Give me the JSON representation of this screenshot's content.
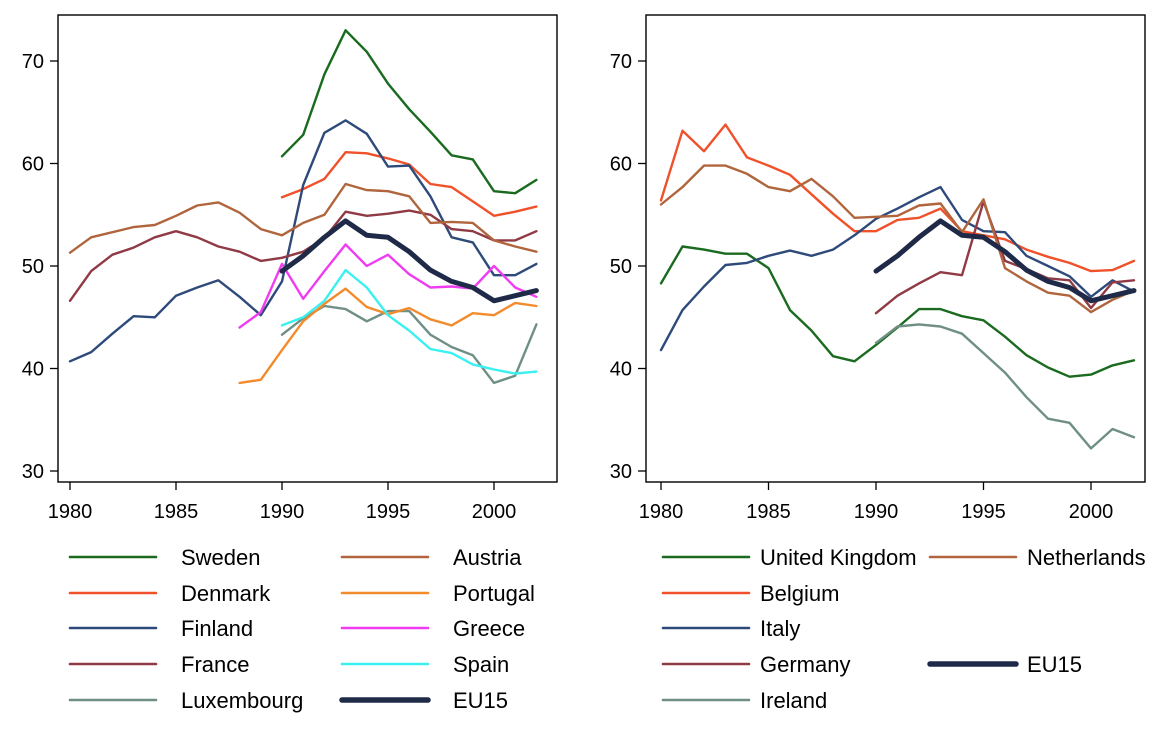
{
  "chart_data": [
    {
      "type": "line",
      "title": "",
      "xlabel": "",
      "ylabel": "",
      "xlim": [
        1980,
        2002.5
      ],
      "ylim": [
        29,
        74.5
      ],
      "xticks": [
        1980,
        1985,
        1990,
        1995,
        2000
      ],
      "yticks": [
        30,
        40,
        50,
        60,
        70
      ],
      "grid": false,
      "legend": "bottom",
      "series": [
        {
          "name": "Sweden",
          "color": "#1a6b1f",
          "x": [
            1990,
            1991,
            1992,
            1993,
            1994,
            1995,
            1996,
            1997,
            1998,
            1999,
            2000,
            2001,
            2002
          ],
          "y": [
            60.7,
            62.8,
            68.7,
            73.0,
            70.9,
            67.8,
            65.3,
            63.1,
            60.8,
            60.4,
            57.3,
            57.1,
            58.4
          ]
        },
        {
          "name": "Denmark",
          "color": "#f0512a",
          "x": [
            1990,
            1991,
            1992,
            1993,
            1994,
            1995,
            1996,
            1997,
            1998,
            1999,
            2000,
            2001,
            2002
          ],
          "y": [
            56.7,
            57.5,
            58.5,
            61.1,
            61.0,
            60.5,
            59.9,
            58.0,
            57.7,
            56.3,
            54.9,
            55.3,
            55.8
          ]
        },
        {
          "name": "Finland",
          "color": "#2e4a7a",
          "x": [
            1980,
            1981,
            1982,
            1983,
            1984,
            1985,
            1986,
            1987,
            1988,
            1989,
            1990,
            1991,
            1992,
            1993,
            1994,
            1995,
            1996,
            1997,
            1998,
            1999,
            2000,
            2001,
            2002
          ],
          "y": [
            40.7,
            41.6,
            43.4,
            45.1,
            45.0,
            47.1,
            47.9,
            48.6,
            47.0,
            45.2,
            48.5,
            57.9,
            63.0,
            64.2,
            62.9,
            59.7,
            59.8,
            56.8,
            52.8,
            52.3,
            49.1,
            49.1,
            50.2
          ]
        },
        {
          "name": "France",
          "color": "#8f3a44",
          "x": [
            1980,
            1981,
            1982,
            1983,
            1984,
            1985,
            1986,
            1987,
            1988,
            1989,
            1990,
            1991,
            1992,
            1993,
            1994,
            1995,
            1996,
            1997,
            1998,
            1999,
            2000,
            2001,
            2002
          ],
          "y": [
            46.6,
            49.5,
            51.1,
            51.8,
            52.8,
            53.4,
            52.8,
            51.9,
            51.4,
            50.5,
            50.8,
            51.4,
            52.7,
            55.3,
            54.9,
            55.1,
            55.4,
            55.0,
            53.6,
            53.4,
            52.5,
            52.5,
            53.4
          ]
        },
        {
          "name": "Luxembourg",
          "color": "#6f8f86",
          "x": [
            1990,
            1991,
            1992,
            1993,
            1994,
            1995,
            1996,
            1997,
            1998,
            1999,
            2000,
            2001,
            2002
          ],
          "y": [
            43.3,
            44.9,
            46.1,
            45.8,
            44.6,
            45.6,
            45.6,
            43.3,
            42.1,
            41.3,
            38.6,
            39.3,
            44.3
          ]
        },
        {
          "name": "Austria",
          "color": "#b0653c",
          "x": [
            1980,
            1981,
            1982,
            1983,
            1984,
            1985,
            1986,
            1987,
            1988,
            1989,
            1990,
            1991,
            1992,
            1993,
            1994,
            1995,
            1996,
            1997,
            1998,
            1999,
            2000,
            2001,
            2002
          ],
          "y": [
            51.3,
            52.8,
            53.3,
            53.8,
            54.0,
            54.9,
            55.9,
            56.2,
            55.2,
            53.6,
            53.0,
            54.2,
            55.0,
            58.0,
            57.4,
            57.3,
            56.8,
            54.2,
            54.3,
            54.2,
            52.5,
            51.9,
            51.4
          ]
        },
        {
          "name": "Portugal",
          "color": "#f28b2c",
          "x": [
            1988,
            1989,
            1990,
            1991,
            1992,
            1993,
            1994,
            1995,
            1996,
            1997,
            1998,
            1999,
            2000,
            2001,
            2002
          ],
          "y": [
            38.6,
            38.9,
            41.8,
            44.6,
            46.3,
            47.8,
            46.0,
            45.3,
            45.9,
            44.8,
            44.2,
            45.4,
            45.2,
            46.4,
            46.1
          ]
        },
        {
          "name": "Greece",
          "color": "#f03cf0",
          "x": [
            1988,
            1989,
            1990,
            1991,
            1992,
            1993,
            1994,
            1995,
            1996,
            1997,
            1998,
            1999,
            2000,
            2001,
            2002
          ],
          "y": [
            44.0,
            45.5,
            50.2,
            46.8,
            49.5,
            52.1,
            50.0,
            51.1,
            49.2,
            47.9,
            48.0,
            47.8,
            50.0,
            47.9,
            47.0
          ]
        },
        {
          "name": "Spain",
          "color": "#3af0f0",
          "x": [
            1990,
            1991,
            1992,
            1993,
            1994,
            1995,
            1996,
            1997,
            1998,
            1999,
            2000,
            2001,
            2002
          ],
          "y": [
            44.2,
            45.0,
            46.6,
            49.6,
            47.9,
            45.2,
            43.7,
            41.9,
            41.5,
            40.4,
            39.9,
            39.5,
            39.7
          ]
        },
        {
          "name": "EU15",
          "color": "#1f2a48",
          "bold": true,
          "x": [
            1990,
            1991,
            1992,
            1993,
            1994,
            1995,
            1996,
            1997,
            1998,
            1999,
            2000,
            2001,
            2002
          ],
          "y": [
            49.5,
            51.0,
            52.8,
            54.4,
            53.0,
            52.8,
            51.4,
            49.6,
            48.5,
            47.9,
            46.6,
            47.1,
            47.6
          ]
        }
      ]
    },
    {
      "type": "line",
      "title": "",
      "xlabel": "",
      "ylabel": "",
      "xlim": [
        1980,
        2002.5
      ],
      "ylim": [
        29,
        74.5
      ],
      "xticks": [
        1980,
        1985,
        1990,
        1995,
        2000
      ],
      "yticks": [
        30,
        40,
        50,
        60,
        70
      ],
      "grid": false,
      "legend": "bottom",
      "series": [
        {
          "name": "United Kingdom",
          "color": "#1a6b1f",
          "x": [
            1980,
            1981,
            1982,
            1983,
            1984,
            1985,
            1986,
            1987,
            1988,
            1989,
            1990,
            1991,
            1992,
            1993,
            1994,
            1995,
            1996,
            1997,
            1998,
            1999,
            2000,
            2001,
            2002
          ],
          "y": [
            48.3,
            51.9,
            51.6,
            51.2,
            51.2,
            49.8,
            45.7,
            43.7,
            41.2,
            40.7,
            42.3,
            44.0,
            45.8,
            45.8,
            45.1,
            44.7,
            43.1,
            41.3,
            40.1,
            39.2,
            39.4,
            40.3,
            40.8
          ]
        },
        {
          "name": "Belgium",
          "color": "#f0512a",
          "x": [
            1980,
            1981,
            1982,
            1983,
            1984,
            1985,
            1986,
            1987,
            1988,
            1989,
            1990,
            1991,
            1992,
            1993,
            1994,
            1995,
            1996,
            1997,
            1998,
            1999,
            2000,
            2001,
            2002
          ],
          "y": [
            56.4,
            63.2,
            61.2,
            63.8,
            60.6,
            59.8,
            58.9,
            57.0,
            55.1,
            53.4,
            53.4,
            54.5,
            54.7,
            55.6,
            53.4,
            53.0,
            52.6,
            51.6,
            50.9,
            50.3,
            49.5,
            49.6,
            50.5
          ]
        },
        {
          "name": "Italy",
          "color": "#2e4a7a",
          "x": [
            1980,
            1981,
            1982,
            1983,
            1984,
            1985,
            1986,
            1987,
            1988,
            1989,
            1990,
            1991,
            1992,
            1993,
            1994,
            1995,
            1996,
            1997,
            1998,
            1999,
            2000,
            2001,
            2002
          ],
          "y": [
            41.8,
            45.7,
            48.0,
            50.1,
            50.3,
            51.0,
            51.5,
            51.0,
            51.6,
            53.0,
            54.6,
            55.6,
            56.7,
            57.7,
            54.5,
            53.4,
            53.3,
            51.0,
            50.0,
            49.0,
            47.0,
            48.6,
            47.5
          ]
        },
        {
          "name": "Germany",
          "color": "#8f3a44",
          "x": [
            1990,
            1991,
            1992,
            1993,
            1994,
            1995,
            1996,
            1997,
            1998,
            1999,
            2000,
            2001,
            2002
          ],
          "y": [
            45.4,
            47.1,
            48.3,
            49.4,
            49.1,
            56.3,
            50.5,
            49.7,
            48.8,
            48.6,
            45.9,
            48.4,
            48.6
          ]
        },
        {
          "name": "Ireland",
          "color": "#6f8f86",
          "x": [
            1990,
            1991,
            1992,
            1993,
            1994,
            1995,
            1996,
            1997,
            1998,
            1999,
            2000,
            2001,
            2002
          ],
          "y": [
            42.5,
            44.1,
            44.3,
            44.1,
            43.4,
            41.5,
            39.6,
            37.2,
            35.1,
            34.7,
            32.2,
            34.1,
            33.3
          ]
        },
        {
          "name": "Netherlands",
          "color": "#b0653c",
          "x": [
            1980,
            1981,
            1982,
            1983,
            1984,
            1985,
            1986,
            1987,
            1988,
            1989,
            1990,
            1991,
            1992,
            1993,
            1994,
            1995,
            1996,
            1997,
            1998,
            1999,
            2000,
            2001,
            2002
          ],
          "y": [
            56.0,
            57.7,
            59.8,
            59.8,
            59.0,
            57.7,
            57.3,
            58.5,
            56.8,
            54.7,
            54.8,
            54.9,
            55.9,
            56.1,
            53.3,
            56.5,
            49.8,
            48.5,
            47.4,
            47.1,
            45.5,
            46.7,
            47.6
          ]
        },
        {
          "name": "EU15",
          "color": "#1f2a48",
          "bold": true,
          "x": [
            1990,
            1991,
            1992,
            1993,
            1994,
            1995,
            1996,
            1997,
            1998,
            1999,
            2000,
            2001,
            2002
          ],
          "y": [
            49.5,
            51.0,
            52.8,
            54.4,
            53.0,
            52.8,
            51.4,
            49.6,
            48.5,
            47.9,
            46.6,
            47.1,
            47.6
          ]
        }
      ]
    }
  ],
  "legends": [
    {
      "columns": [
        [
          "Sweden",
          "Denmark",
          "Finland",
          "France",
          "Luxembourg"
        ],
        [
          "Austria",
          "Portugal",
          "Greece",
          "Spain",
          "EU15"
        ]
      ]
    },
    {
      "columns": [
        [
          "United Kingdom",
          "Belgium",
          "Italy",
          "Germany",
          "Ireland"
        ],
        [
          "Netherlands",
          "",
          "",
          "EU15",
          ""
        ]
      ]
    }
  ]
}
